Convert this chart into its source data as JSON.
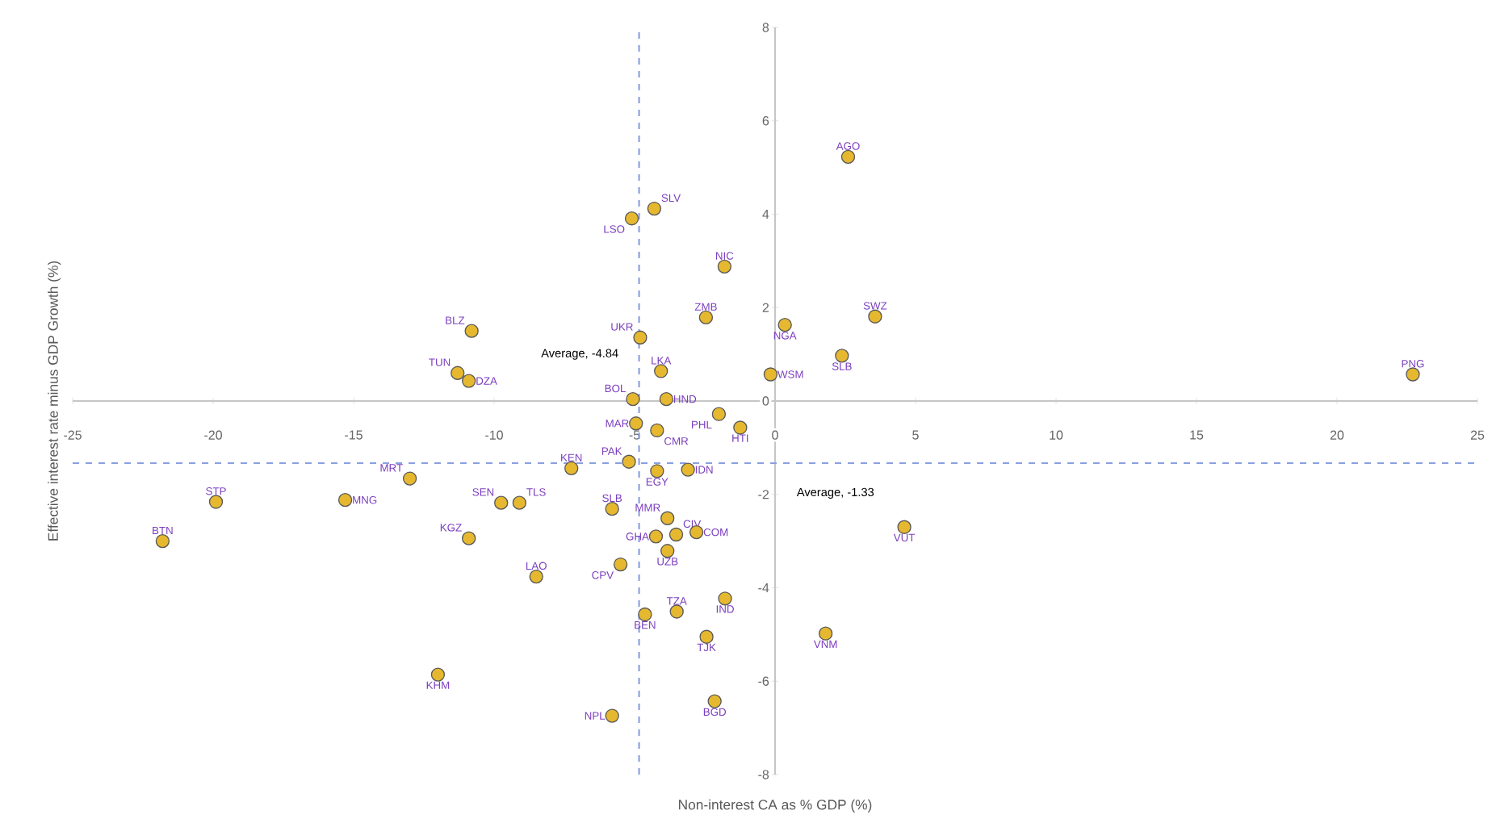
{
  "chart_data": {
    "type": "scatter",
    "xlabel": "Non-interest CA as % GDP (%)",
    "ylabel": "Effective interest rate minus GDP Growth (%)",
    "xlim": [
      -25,
      25
    ],
    "ylim": [
      -8,
      8
    ],
    "xticks": [
      -25,
      -20,
      -15,
      -10,
      -5,
      0,
      5,
      10,
      15,
      20,
      25
    ],
    "yticks": [
      -8,
      -6,
      -4,
      -2,
      0,
      2,
      4,
      6,
      8
    ],
    "marker": "circle",
    "grid": false,
    "series": [
      {
        "color": "#e6b830",
        "x": [
          -21.8,
          -19.9,
          -15.3,
          -13.0,
          -10.9,
          -12.0,
          -10.8,
          -11.3,
          -10.9,
          -9.75,
          -9.1,
          -7.25,
          -8.5,
          -5.8,
          -5.2,
          -4.95,
          -5.06,
          -4.8,
          -5.1,
          -4.3,
          -4.06,
          -1.8,
          -2.46,
          -3.87,
          -4.2,
          -2.0,
          -1.24,
          -3.1,
          -4.2,
          -3.83,
          -4.24,
          -3.52,
          -2.8,
          -3.83,
          -5.5,
          -4.63,
          -3.5,
          -1.78,
          -2.44,
          -2.15,
          -5.8,
          2.6,
          0.35,
          3.56,
          2.38,
          -0.16,
          22.7,
          4.6,
          1.8
        ],
        "values": [
          -3.0,
          -2.16,
          -2.12,
          -1.66,
          -2.94,
          -5.86,
          1.5,
          0.6,
          0.43,
          -2.18,
          -2.18,
          -1.44,
          -3.76,
          -2.31,
          -1.3,
          -0.48,
          0.04,
          1.36,
          3.91,
          4.12,
          0.64,
          2.88,
          1.79,
          0.04,
          -0.63,
          -0.28,
          -0.57,
          -1.47,
          -1.5,
          -2.51,
          -2.9,
          -2.86,
          -2.81,
          -3.21,
          -3.5,
          -4.57,
          -4.51,
          -4.23,
          -5.05,
          -6.43,
          -6.74,
          5.23,
          1.63,
          1.81,
          0.97,
          0.57,
          0.57,
          -2.7,
          -4.98
        ]
      }
    ],
    "ref_lines": [
      {
        "axis": "x",
        "value": -4.84,
        "label": "Average, -4.84",
        "color": "#8a9fe0",
        "line_style": "dashed"
      },
      {
        "axis": "y",
        "value": -1.33,
        "label": "Average, -1.33",
        "color": "#8a9fe0",
        "line_style": "dashed"
      }
    ],
    "annotations": [
      {
        "text": "BTN",
        "x": -21.8,
        "y": -3.0
      },
      {
        "text": "STP",
        "x": -19.9,
        "y": -2.16
      },
      {
        "text": "MNG",
        "x": -15.3,
        "y": -2.12
      },
      {
        "text": "MRT",
        "x": -13.0,
        "y": -1.66
      },
      {
        "text": "KGZ",
        "x": -10.9,
        "y": -2.94
      },
      {
        "text": "KHM",
        "x": -12.0,
        "y": -5.86
      },
      {
        "text": "BLZ",
        "x": -10.8,
        "y": 1.5
      },
      {
        "text": "TUN",
        "x": -11.3,
        "y": 0.6
      },
      {
        "text": "DZA",
        "x": -10.9,
        "y": 0.43
      },
      {
        "text": "SEN",
        "x": -9.75,
        "y": -2.18
      },
      {
        "text": "TLS",
        "x": -9.1,
        "y": -2.18
      },
      {
        "text": "KEN",
        "x": -7.25,
        "y": -1.44
      },
      {
        "text": "LAO",
        "x": -8.5,
        "y": -3.76
      },
      {
        "text": "SLB",
        "x": -5.8,
        "y": -2.31
      },
      {
        "text": "PAK",
        "x": -5.2,
        "y": -1.3
      },
      {
        "text": "MAR",
        "x": -4.95,
        "y": -0.48
      },
      {
        "text": "BOL",
        "x": -5.06,
        "y": 0.04
      },
      {
        "text": "UKR",
        "x": -4.8,
        "y": 1.36
      },
      {
        "text": "LSO",
        "x": -5.1,
        "y": 3.91
      },
      {
        "text": "SLV",
        "x": -4.3,
        "y": 4.12
      },
      {
        "text": "LKA",
        "x": -4.06,
        "y": 0.64
      },
      {
        "text": "NIC",
        "x": -1.8,
        "y": 2.88
      },
      {
        "text": "ZMB",
        "x": -2.46,
        "y": 1.79
      },
      {
        "text": "HND",
        "x": -3.87,
        "y": 0.04
      },
      {
        "text": "CMR",
        "x": -4.2,
        "y": -0.63
      },
      {
        "text": "PHL",
        "x": -2.0,
        "y": -0.28
      },
      {
        "text": "HTI",
        "x": -1.24,
        "y": -0.57
      },
      {
        "text": "IDN",
        "x": -3.1,
        "y": -1.47
      },
      {
        "text": "EGY",
        "x": -4.2,
        "y": -1.5
      },
      {
        "text": "MMR",
        "x": -3.83,
        "y": -2.51
      },
      {
        "text": "GHA",
        "x": -4.24,
        "y": -2.9
      },
      {
        "text": "CIV",
        "x": -3.52,
        "y": -2.86
      },
      {
        "text": "COM",
        "x": -2.8,
        "y": -2.81
      },
      {
        "text": "UZB",
        "x": -3.83,
        "y": -3.21
      },
      {
        "text": "CPV",
        "x": -5.5,
        "y": -3.5
      },
      {
        "text": "BEN",
        "x": -4.63,
        "y": -4.57
      },
      {
        "text": "TZA",
        "x": -3.5,
        "y": -4.51
      },
      {
        "text": "IND",
        "x": -1.78,
        "y": -4.23
      },
      {
        "text": "TJK",
        "x": -2.44,
        "y": -5.05
      },
      {
        "text": "BGD",
        "x": -2.15,
        "y": -6.43
      },
      {
        "text": "NPL",
        "x": -5.8,
        "y": -6.74
      },
      {
        "text": "AGO",
        "x": 2.6,
        "y": 5.23
      },
      {
        "text": "NGA",
        "x": 0.35,
        "y": 1.63
      },
      {
        "text": "SWZ",
        "x": 3.56,
        "y": 1.81
      },
      {
        "text": "SLB",
        "x": 2.38,
        "y": 0.97
      },
      {
        "text": "WSM",
        "x": -0.16,
        "y": 0.57
      },
      {
        "text": "PNG",
        "x": 22.7,
        "y": 0.57
      },
      {
        "text": "VUT",
        "x": 4.6,
        "y": -2.7
      },
      {
        "text": "VNM",
        "x": 1.8,
        "y": -4.98
      }
    ]
  }
}
